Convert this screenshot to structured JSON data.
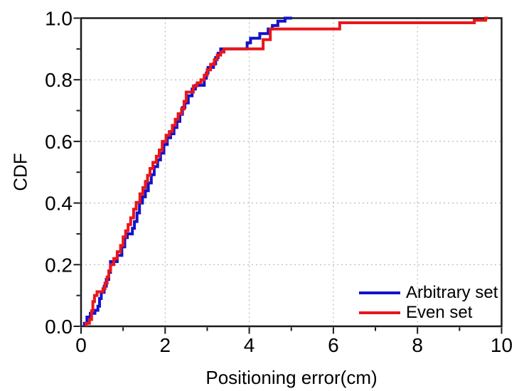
{
  "chart_data": {
    "type": "line",
    "subtype": "cdf-step",
    "title": "",
    "xlabel": "Positioning error(cm)",
    "ylabel": "CDF",
    "xlim": [
      0,
      10
    ],
    "ylim": [
      0.0,
      1.0
    ],
    "x_ticks": {
      "major": [
        0,
        2,
        4,
        6,
        8,
        10
      ],
      "minor": [
        1,
        3,
        5,
        7,
        9
      ],
      "labels": [
        "0",
        "2",
        "4",
        "6",
        "8",
        "10"
      ]
    },
    "y_ticks": {
      "major": [
        0.0,
        0.2,
        0.4,
        0.6,
        0.8,
        1.0
      ],
      "minor": [
        0.1,
        0.3,
        0.5,
        0.7,
        0.9
      ],
      "labels": [
        "0.0",
        "0.2",
        "0.4",
        "0.6",
        "0.8",
        "1.0"
      ]
    },
    "grid": {
      "x_lines": [
        2,
        4,
        6,
        8
      ],
      "y_lines": [
        0.2,
        0.4,
        0.6,
        0.8
      ],
      "style": "dashed",
      "color": "#ababab"
    },
    "frame_color": "#1a1a1a",
    "legend": {
      "position": "bottom-right",
      "entries": [
        {
          "label": "Arbitrary set",
          "color": "#1212cd"
        },
        {
          "label": "Even set",
          "color": "#e8161b"
        }
      ]
    },
    "series": [
      {
        "name": "Arbitrary set",
        "color": "#1212cd",
        "end_x": 5.02,
        "points": [
          [
            0.08,
            0.01
          ],
          [
            0.14,
            0.03
          ],
          [
            0.22,
            0.042
          ],
          [
            0.33,
            0.052
          ],
          [
            0.4,
            0.065
          ],
          [
            0.44,
            0.09
          ],
          [
            0.48,
            0.11
          ],
          [
            0.55,
            0.13
          ],
          [
            0.6,
            0.152
          ],
          [
            0.66,
            0.175
          ],
          [
            0.7,
            0.21
          ],
          [
            0.86,
            0.23
          ],
          [
            0.97,
            0.258
          ],
          [
            1.04,
            0.288
          ],
          [
            1.1,
            0.3
          ],
          [
            1.22,
            0.318
          ],
          [
            1.27,
            0.34
          ],
          [
            1.33,
            0.368
          ],
          [
            1.39,
            0.4
          ],
          [
            1.46,
            0.42
          ],
          [
            1.53,
            0.44
          ],
          [
            1.6,
            0.465
          ],
          [
            1.67,
            0.492
          ],
          [
            1.74,
            0.518
          ],
          [
            1.82,
            0.54
          ],
          [
            1.89,
            0.562
          ],
          [
            1.97,
            0.59
          ],
          [
            2.05,
            0.612
          ],
          [
            2.13,
            0.625
          ],
          [
            2.21,
            0.645
          ],
          [
            2.28,
            0.665
          ],
          [
            2.35,
            0.688
          ],
          [
            2.41,
            0.71
          ],
          [
            2.47,
            0.725
          ],
          [
            2.55,
            0.748
          ],
          [
            2.64,
            0.77
          ],
          [
            2.72,
            0.782
          ],
          [
            2.93,
            0.805
          ],
          [
            2.98,
            0.822
          ],
          [
            3.02,
            0.84
          ],
          [
            3.15,
            0.852
          ],
          [
            3.2,
            0.872
          ],
          [
            3.26,
            0.886
          ],
          [
            3.32,
            0.9
          ],
          [
            3.95,
            0.92
          ],
          [
            4.03,
            0.935
          ],
          [
            4.25,
            0.95
          ],
          [
            4.45,
            0.965
          ],
          [
            4.55,
            0.976
          ],
          [
            4.68,
            0.99
          ],
          [
            4.85,
            1.0
          ]
        ]
      },
      {
        "name": "Even set",
        "color": "#e8161b",
        "end_x": 9.68,
        "points": [
          [
            0.12,
            0.01
          ],
          [
            0.2,
            0.022
          ],
          [
            0.25,
            0.05
          ],
          [
            0.28,
            0.08
          ],
          [
            0.32,
            0.1
          ],
          [
            0.38,
            0.112
          ],
          [
            0.52,
            0.122
          ],
          [
            0.57,
            0.14
          ],
          [
            0.62,
            0.16
          ],
          [
            0.66,
            0.18
          ],
          [
            0.7,
            0.2
          ],
          [
            0.78,
            0.22
          ],
          [
            0.86,
            0.242
          ],
          [
            0.94,
            0.262
          ],
          [
            1.0,
            0.29
          ],
          [
            1.06,
            0.31
          ],
          [
            1.12,
            0.33
          ],
          [
            1.18,
            0.352
          ],
          [
            1.25,
            0.38
          ],
          [
            1.31,
            0.402
          ],
          [
            1.4,
            0.43
          ],
          [
            1.47,
            0.45
          ],
          [
            1.53,
            0.47
          ],
          [
            1.58,
            0.49
          ],
          [
            1.64,
            0.512
          ],
          [
            1.71,
            0.532
          ],
          [
            1.79,
            0.552
          ],
          [
            1.86,
            0.572
          ],
          [
            1.93,
            0.6
          ],
          [
            2.02,
            0.62
          ],
          [
            2.1,
            0.632
          ],
          [
            2.17,
            0.652
          ],
          [
            2.24,
            0.672
          ],
          [
            2.31,
            0.69
          ],
          [
            2.39,
            0.705
          ],
          [
            2.45,
            0.73
          ],
          [
            2.5,
            0.76
          ],
          [
            2.67,
            0.78
          ],
          [
            2.76,
            0.79
          ],
          [
            2.85,
            0.8
          ],
          [
            2.93,
            0.815
          ],
          [
            3.0,
            0.832
          ],
          [
            3.08,
            0.85
          ],
          [
            3.17,
            0.865
          ],
          [
            3.24,
            0.88
          ],
          [
            3.32,
            0.89
          ],
          [
            3.4,
            0.9
          ],
          [
            4.33,
            0.93
          ],
          [
            4.5,
            0.965
          ],
          [
            6.15,
            0.985
          ],
          [
            9.35,
            0.993
          ],
          [
            9.62,
            1.0
          ]
        ]
      }
    ]
  }
}
